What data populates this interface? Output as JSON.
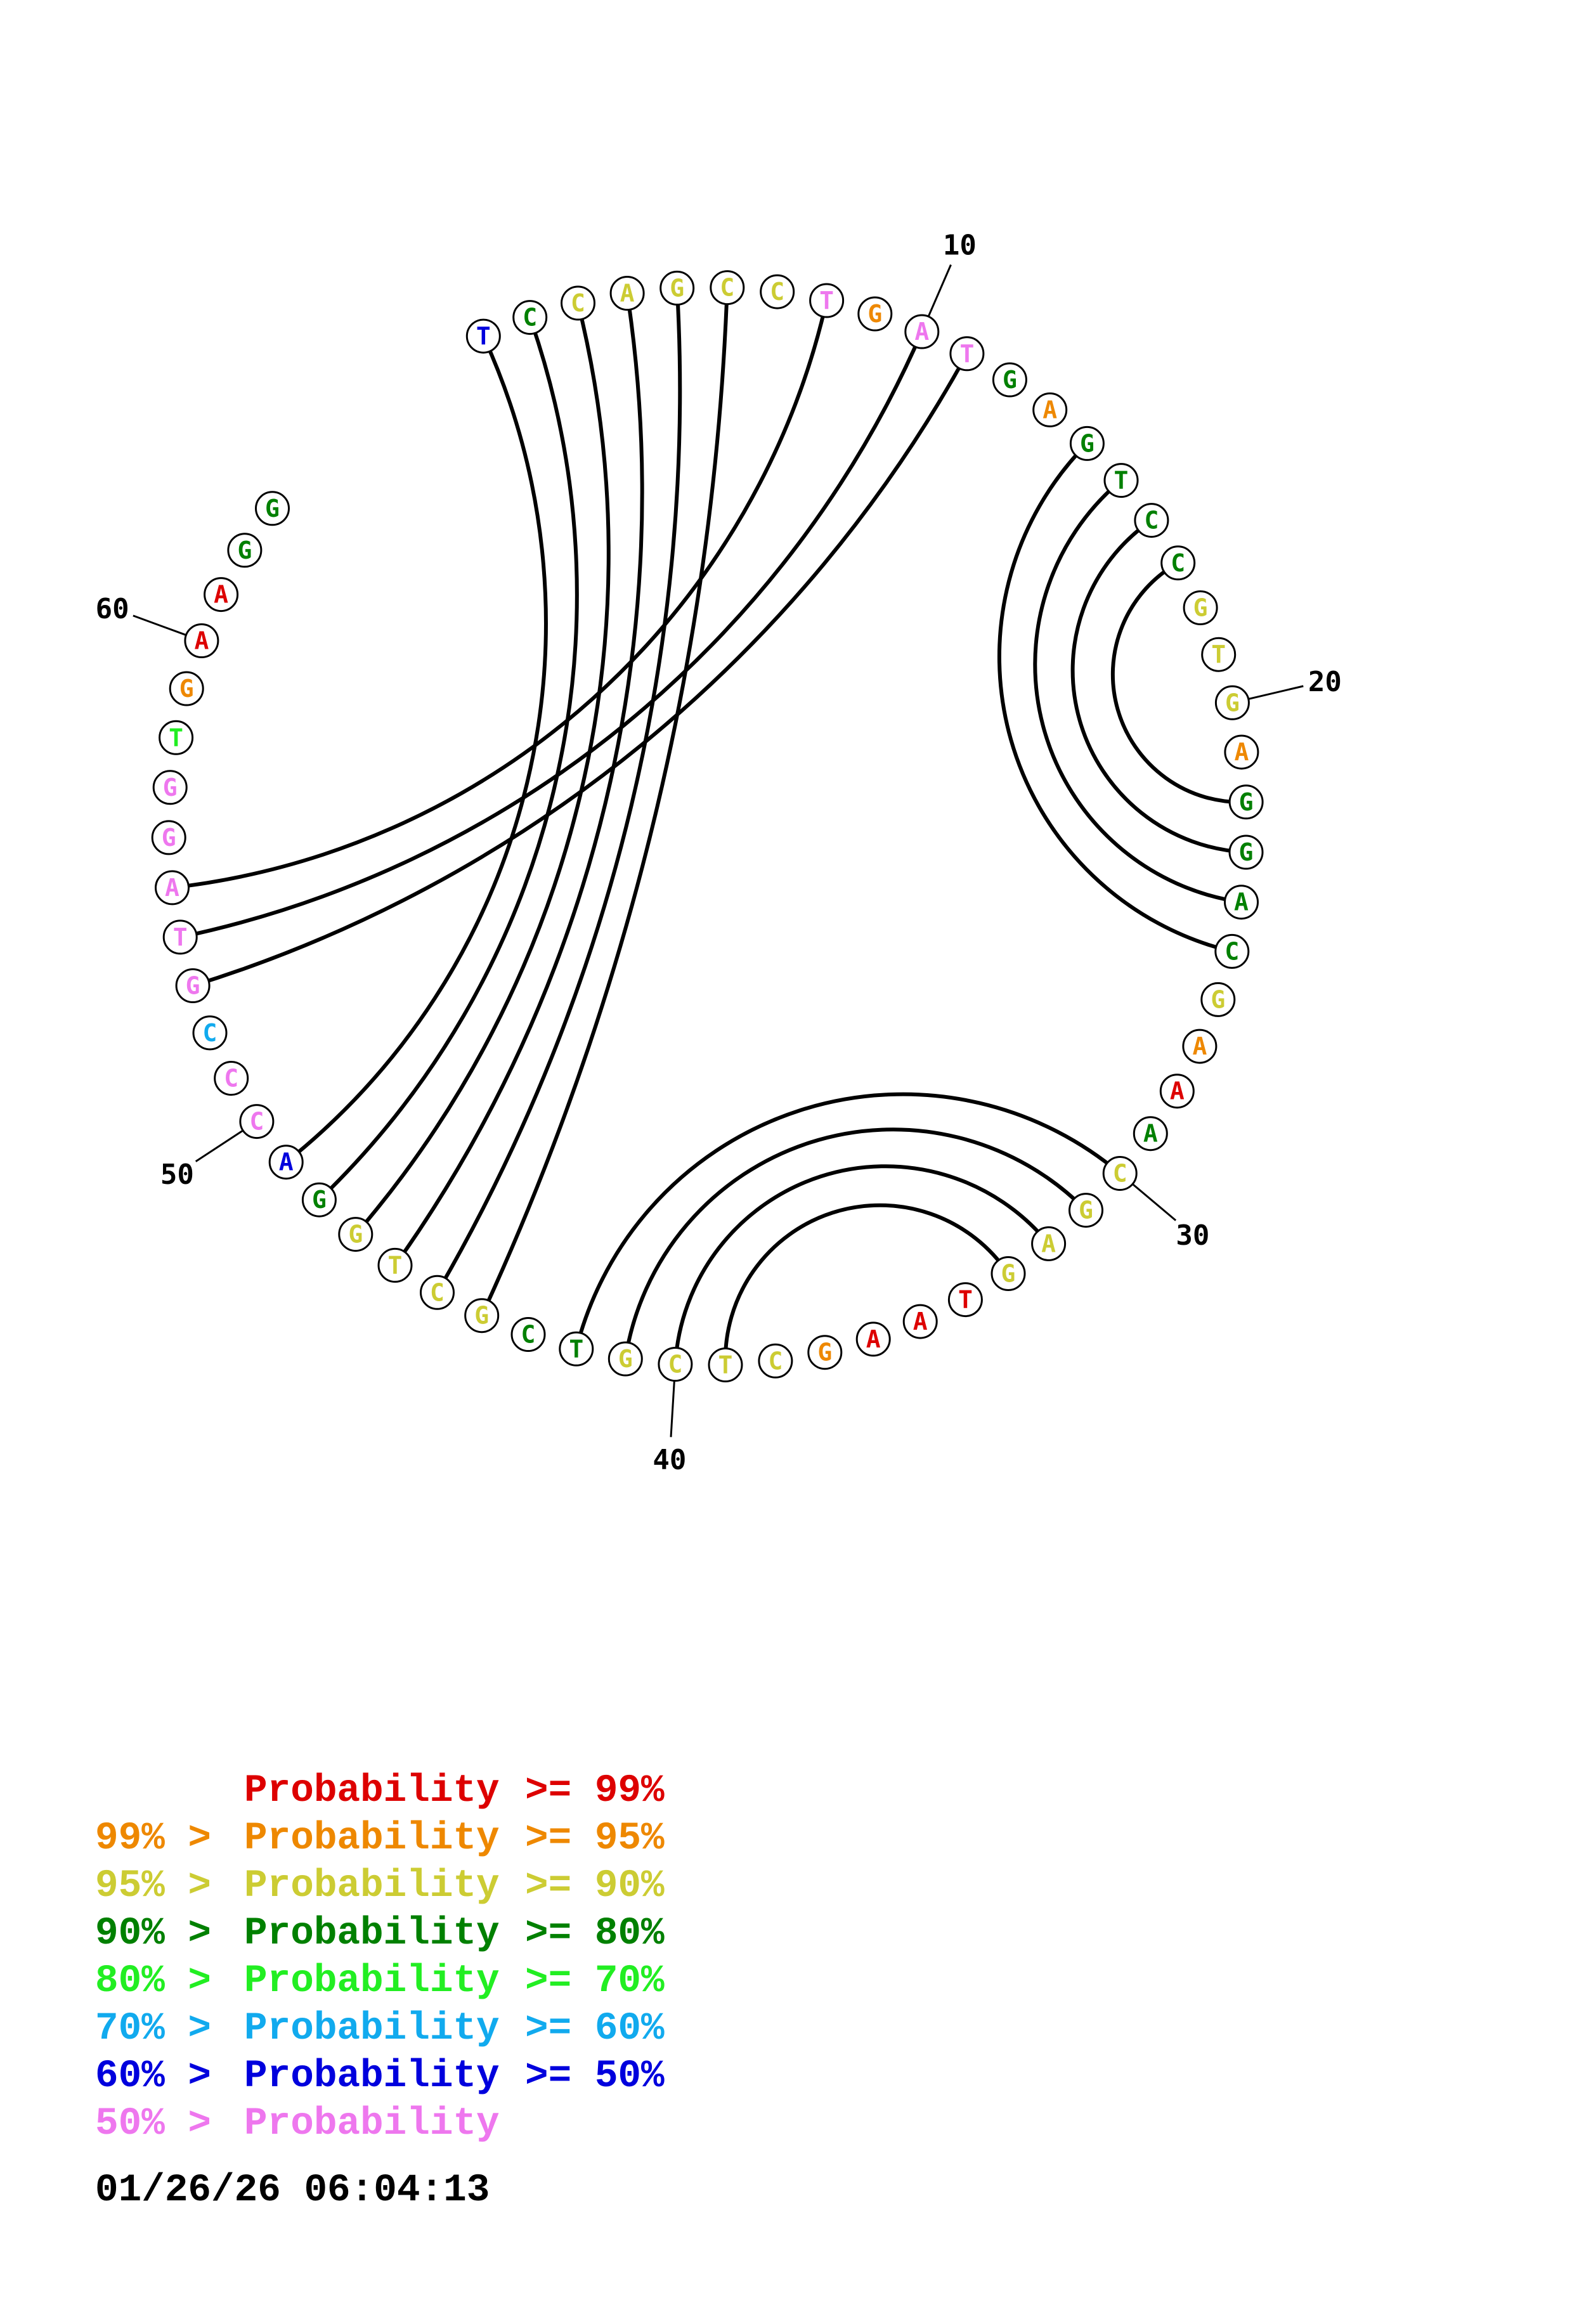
{
  "sequence": [
    {
      "n": 1,
      "base": "T",
      "color": "#0000dd"
    },
    {
      "n": 2,
      "base": "C",
      "color": "#008000"
    },
    {
      "n": 3,
      "base": "C",
      "color": "#cccc33"
    },
    {
      "n": 4,
      "base": "A",
      "color": "#cccc33"
    },
    {
      "n": 5,
      "base": "G",
      "color": "#cccc33"
    },
    {
      "n": 6,
      "base": "C",
      "color": "#cccc33"
    },
    {
      "n": 7,
      "base": "C",
      "color": "#cccc33"
    },
    {
      "n": 8,
      "base": "T",
      "color": "#ee77ee"
    },
    {
      "n": 9,
      "base": "G",
      "color": "#ee8800"
    },
    {
      "n": 10,
      "base": "A",
      "color": "#ee77ee"
    },
    {
      "n": 11,
      "base": "T",
      "color": "#ee77ee"
    },
    {
      "n": 12,
      "base": "G",
      "color": "#008000"
    },
    {
      "n": 13,
      "base": "A",
      "color": "#ee8800"
    },
    {
      "n": 14,
      "base": "G",
      "color": "#008000"
    },
    {
      "n": 15,
      "base": "T",
      "color": "#008000"
    },
    {
      "n": 16,
      "base": "C",
      "color": "#008000"
    },
    {
      "n": 17,
      "base": "C",
      "color": "#008000"
    },
    {
      "n": 18,
      "base": "G",
      "color": "#cccc33"
    },
    {
      "n": 19,
      "base": "T",
      "color": "#cccc33"
    },
    {
      "n": 20,
      "base": "G",
      "color": "#cccc33"
    },
    {
      "n": 21,
      "base": "A",
      "color": "#ee8800"
    },
    {
      "n": 22,
      "base": "G",
      "color": "#008000"
    },
    {
      "n": 23,
      "base": "G",
      "color": "#008000"
    },
    {
      "n": 24,
      "base": "A",
      "color": "#008000"
    },
    {
      "n": 25,
      "base": "C",
      "color": "#008000"
    },
    {
      "n": 26,
      "base": "G",
      "color": "#cccc33"
    },
    {
      "n": 27,
      "base": "A",
      "color": "#ee8800"
    },
    {
      "n": 28,
      "base": "A",
      "color": "#dd0000"
    },
    {
      "n": 29,
      "base": "A",
      "color": "#008000"
    },
    {
      "n": 30,
      "base": "C",
      "color": "#cccc33"
    },
    {
      "n": 31,
      "base": "G",
      "color": "#cccc33"
    },
    {
      "n": 32,
      "base": "A",
      "color": "#cccc33"
    },
    {
      "n": 33,
      "base": "G",
      "color": "#cccc33"
    },
    {
      "n": 34,
      "base": "T",
      "color": "#dd0000"
    },
    {
      "n": 35,
      "base": "A",
      "color": "#dd0000"
    },
    {
      "n": 36,
      "base": "A",
      "color": "#dd0000"
    },
    {
      "n": 37,
      "base": "G",
      "color": "#ee8800"
    },
    {
      "n": 38,
      "base": "C",
      "color": "#cccc33"
    },
    {
      "n": 39,
      "base": "T",
      "color": "#cccc33"
    },
    {
      "n": 40,
      "base": "C",
      "color": "#cccc33"
    },
    {
      "n": 41,
      "base": "G",
      "color": "#cccc33"
    },
    {
      "n": 42,
      "base": "T",
      "color": "#008000"
    },
    {
      "n": 43,
      "base": "C",
      "color": "#008000"
    },
    {
      "n": 44,
      "base": "G",
      "color": "#cccc33"
    },
    {
      "n": 45,
      "base": "C",
      "color": "#cccc33"
    },
    {
      "n": 46,
      "base": "T",
      "color": "#cccc33"
    },
    {
      "n": 47,
      "base": "G",
      "color": "#cccc33"
    },
    {
      "n": 48,
      "base": "G",
      "color": "#008000"
    },
    {
      "n": 49,
      "base": "A",
      "color": "#0000dd"
    },
    {
      "n": 50,
      "base": "C",
      "color": "#ee77ee"
    },
    {
      "n": 51,
      "base": "C",
      "color": "#ee77ee"
    },
    {
      "n": 52,
      "base": "C",
      "color": "#11aaee"
    },
    {
      "n": 53,
      "base": "G",
      "color": "#ee77ee"
    },
    {
      "n": 54,
      "base": "T",
      "color": "#ee77ee"
    },
    {
      "n": 55,
      "base": "A",
      "color": "#ee77ee"
    },
    {
      "n": 56,
      "base": "G",
      "color": "#ee77ee"
    },
    {
      "n": 57,
      "base": "G",
      "color": "#ee77ee"
    },
    {
      "n": 58,
      "base": "T",
      "color": "#22ee22"
    },
    {
      "n": 59,
      "base": "G",
      "color": "#ee8800"
    },
    {
      "n": 60,
      "base": "A",
      "color": "#dd0000"
    },
    {
      "n": 61,
      "base": "A",
      "color": "#dd0000"
    },
    {
      "n": 62,
      "base": "G",
      "color": "#008000"
    },
    {
      "n": 63,
      "base": "G",
      "color": "#008000"
    }
  ],
  "pairs": [
    [
      1,
      49
    ],
    [
      2,
      48
    ],
    [
      3,
      47
    ],
    [
      4,
      46
    ],
    [
      5,
      45
    ],
    [
      6,
      44
    ],
    [
      8,
      55
    ],
    [
      10,
      54
    ],
    [
      11,
      53
    ],
    [
      14,
      25
    ],
    [
      15,
      24
    ],
    [
      16,
      23
    ],
    [
      17,
      22
    ],
    [
      30,
      42
    ],
    [
      31,
      41
    ],
    [
      32,
      40
    ],
    [
      33,
      39
    ]
  ],
  "position_labels": [
    {
      "n": 10,
      "text": "10",
      "side": "right"
    },
    {
      "n": 20,
      "text": "20",
      "side": "right"
    },
    {
      "n": 30,
      "text": "30",
      "side": "bottom"
    },
    {
      "n": 40,
      "text": "40",
      "side": "left"
    },
    {
      "n": 50,
      "text": "50",
      "side": "left"
    },
    {
      "n": 60,
      "text": "60",
      "side": "top"
    }
  ],
  "legend": [
    {
      "pre": "",
      "label": "Probability",
      "post": ">= 99%",
      "color": "#dd0000"
    },
    {
      "pre": "99% >",
      "label": "Probability",
      "post": ">= 95%",
      "color": "#ee8800"
    },
    {
      "pre": "95% >",
      "label": "Probability",
      "post": ">= 90%",
      "color": "#cccc33"
    },
    {
      "pre": "90% >",
      "label": "Probability",
      "post": ">= 80%",
      "color": "#008000"
    },
    {
      "pre": "80% >",
      "label": "Probability",
      "post": ">= 70%",
      "color": "#22ee22"
    },
    {
      "pre": "70% >",
      "label": "Probability",
      "post": ">= 60%",
      "color": "#11aaee"
    },
    {
      "pre": "60% >",
      "label": "Probability",
      "post": ">= 50%",
      "color": "#0000dd"
    },
    {
      "pre": "50% >",
      "label": "Probability",
      "post": "",
      "color": "#ee77ee"
    }
  ],
  "timestamp": "01/26/26 06:04:13"
}
